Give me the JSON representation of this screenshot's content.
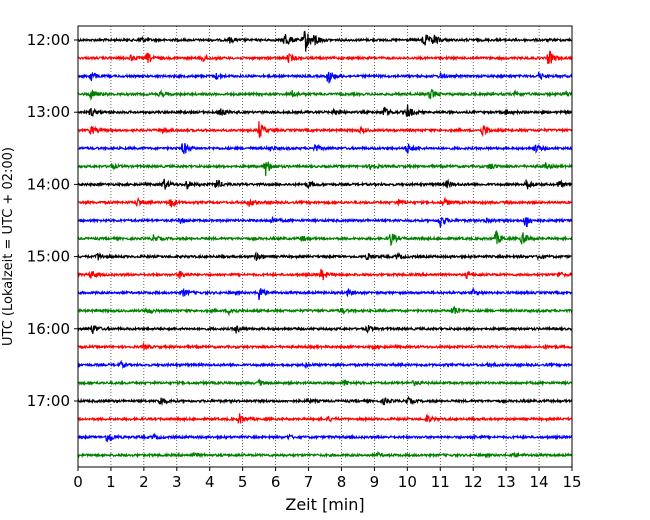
{
  "chart_data": {
    "type": "line",
    "title": "",
    "xlabel": "Zeit  [min]",
    "ylabel": "UTC (Lokalzeit = UTC + 02:00)",
    "xlim": [
      0,
      15
    ],
    "x_ticks": [
      0,
      1,
      2,
      3,
      4,
      5,
      6,
      7,
      8,
      9,
      10,
      11,
      12,
      13,
      14,
      15
    ],
    "x_tick_labels": [
      "0",
      "1",
      "2",
      "3",
      "4",
      "5",
      "6",
      "7",
      "8",
      "9",
      "10",
      "11",
      "12",
      "13",
      "14",
      "15"
    ],
    "y_ticks": [
      "12:00",
      "13:00",
      "14:00",
      "15:00",
      "16:00",
      "17:00"
    ],
    "row_interval_min": 15,
    "row_start": "12:00",
    "row_count": 24,
    "grid": "vertical-dotted",
    "color_cycle": [
      "#000000",
      "#ff0000",
      "#0000ff",
      "#008000"
    ],
    "rows": [
      {
        "label": "12:00",
        "events": [
          {
            "t": 6.3,
            "a": 1.0
          },
          {
            "t": 6.9,
            "a": 1.4
          },
          {
            "t": 7.2,
            "a": 0.6
          },
          {
            "t": 10.5,
            "a": 0.9
          },
          {
            "t": 10.8,
            "a": 0.6
          },
          {
            "t": 1.9,
            "a": 0.35
          },
          {
            "t": 4.6,
            "a": 0.3
          }
        ]
      },
      {
        "label": "12:15",
        "events": [
          {
            "t": 2.1,
            "a": 0.6
          },
          {
            "t": 3.8,
            "a": 0.4
          },
          {
            "t": 6.4,
            "a": 0.5
          },
          {
            "t": 14.3,
            "a": 0.9
          },
          {
            "t": 1.6,
            "a": 0.3
          }
        ]
      },
      {
        "label": "12:30",
        "events": [
          {
            "t": 0.4,
            "a": 0.6
          },
          {
            "t": 7.6,
            "a": 0.9
          },
          {
            "t": 14.0,
            "a": 0.4
          },
          {
            "t": 4.2,
            "a": 0.3
          },
          {
            "t": 11.0,
            "a": 0.3
          }
        ]
      },
      {
        "label": "12:45",
        "events": [
          {
            "t": 0.4,
            "a": 0.5
          },
          {
            "t": 2.5,
            "a": 0.3
          },
          {
            "t": 6.5,
            "a": 0.4
          },
          {
            "t": 10.7,
            "a": 0.7
          },
          {
            "t": 13.3,
            "a": 0.4
          },
          {
            "t": 14.8,
            "a": 0.4
          }
        ]
      },
      {
        "label": "13:00",
        "events": [
          {
            "t": 0.4,
            "a": 0.5
          },
          {
            "t": 4.3,
            "a": 0.6
          },
          {
            "t": 9.3,
            "a": 0.6
          },
          {
            "t": 10.0,
            "a": 0.8
          },
          {
            "t": 7.8,
            "a": 0.35
          },
          {
            "t": 13.0,
            "a": 0.3
          }
        ]
      },
      {
        "label": "13:15",
        "events": [
          {
            "t": 0.4,
            "a": 0.5
          },
          {
            "t": 5.5,
            "a": 1.0
          },
          {
            "t": 12.3,
            "a": 0.7
          },
          {
            "t": 8.6,
            "a": 0.3
          },
          {
            "t": 2.6,
            "a": 0.3
          }
        ]
      },
      {
        "label": "13:30",
        "events": [
          {
            "t": 3.2,
            "a": 0.8
          },
          {
            "t": 7.2,
            "a": 0.4
          },
          {
            "t": 10.0,
            "a": 0.6
          },
          {
            "t": 13.9,
            "a": 0.4
          },
          {
            "t": 5.8,
            "a": 0.3
          }
        ]
      },
      {
        "label": "13:45",
        "events": [
          {
            "t": 1.0,
            "a": 0.3
          },
          {
            "t": 5.7,
            "a": 1.0
          },
          {
            "t": 8.9,
            "a": 0.35
          },
          {
            "t": 12.5,
            "a": 0.4
          },
          {
            "t": 14.2,
            "a": 0.3
          }
        ]
      },
      {
        "label": "14:00",
        "events": [
          {
            "t": 2.6,
            "a": 0.7
          },
          {
            "t": 3.3,
            "a": 0.5
          },
          {
            "t": 4.2,
            "a": 0.6
          },
          {
            "t": 7.0,
            "a": 0.4
          },
          {
            "t": 11.2,
            "a": 0.4
          },
          {
            "t": 13.6,
            "a": 0.7
          },
          {
            "t": 14.6,
            "a": 0.4
          }
        ]
      },
      {
        "label": "14:15",
        "events": [
          {
            "t": 1.8,
            "a": 0.5
          },
          {
            "t": 2.8,
            "a": 0.6
          },
          {
            "t": 5.2,
            "a": 0.4
          },
          {
            "t": 9.7,
            "a": 0.35
          },
          {
            "t": 11.1,
            "a": 0.45
          }
        ]
      },
      {
        "label": "14:30",
        "events": [
          {
            "t": 3.1,
            "a": 0.3
          },
          {
            "t": 11.0,
            "a": 0.8
          },
          {
            "t": 13.6,
            "a": 0.9
          },
          {
            "t": 5.9,
            "a": 0.3
          },
          {
            "t": 12.4,
            "a": 0.3
          }
        ]
      },
      {
        "label": "14:45",
        "events": [
          {
            "t": 2.3,
            "a": 0.4
          },
          {
            "t": 9.5,
            "a": 0.8
          },
          {
            "t": 12.7,
            "a": 0.8
          },
          {
            "t": 13.5,
            "a": 0.8
          },
          {
            "t": 6.8,
            "a": 0.3
          }
        ]
      },
      {
        "label": "15:00",
        "events": [
          {
            "t": 0.6,
            "a": 0.4
          },
          {
            "t": 5.4,
            "a": 0.4
          },
          {
            "t": 8.8,
            "a": 0.4
          },
          {
            "t": 9.7,
            "a": 0.3
          },
          {
            "t": 14.0,
            "a": 0.3
          }
        ]
      },
      {
        "label": "15:15",
        "events": [
          {
            "t": 0.4,
            "a": 0.5
          },
          {
            "t": 3.1,
            "a": 0.4
          },
          {
            "t": 7.4,
            "a": 0.7
          },
          {
            "t": 11.8,
            "a": 0.3
          },
          {
            "t": 14.6,
            "a": 0.3
          }
        ]
      },
      {
        "label": "15:30",
        "events": [
          {
            "t": 3.2,
            "a": 0.4
          },
          {
            "t": 5.5,
            "a": 0.8
          },
          {
            "t": 8.2,
            "a": 0.3
          },
          {
            "t": 12.0,
            "a": 0.3
          }
        ]
      },
      {
        "label": "15:45",
        "events": [
          {
            "t": 2.1,
            "a": 0.3
          },
          {
            "t": 4.6,
            "a": 0.4
          },
          {
            "t": 11.4,
            "a": 0.6
          },
          {
            "t": 8.0,
            "a": 0.25
          }
        ]
      },
      {
        "label": "16:00",
        "events": [
          {
            "t": 0.45,
            "a": 0.5
          },
          {
            "t": 4.8,
            "a": 0.4
          },
          {
            "t": 8.8,
            "a": 0.35
          }
        ]
      },
      {
        "label": "16:15",
        "events": [
          {
            "t": 2.0,
            "a": 0.25
          },
          {
            "t": 9.0,
            "a": 0.2
          },
          {
            "t": 14.2,
            "a": 0.2
          }
        ]
      },
      {
        "label": "16:30",
        "events": [
          {
            "t": 1.3,
            "a": 0.3
          },
          {
            "t": 6.9,
            "a": 0.2
          },
          {
            "t": 12.5,
            "a": 0.25
          }
        ]
      },
      {
        "label": "16:45",
        "events": [
          {
            "t": 5.5,
            "a": 0.3
          },
          {
            "t": 8.1,
            "a": 0.3
          },
          {
            "t": 10.2,
            "a": 0.25
          }
        ]
      },
      {
        "label": "17:00",
        "events": [
          {
            "t": 2.5,
            "a": 0.5
          },
          {
            "t": 9.3,
            "a": 0.35
          },
          {
            "t": 10.0,
            "a": 0.4
          },
          {
            "t": 7.0,
            "a": 0.2
          }
        ]
      },
      {
        "label": "17:15",
        "events": [
          {
            "t": 4.9,
            "a": 0.6
          },
          {
            "t": 10.6,
            "a": 0.4
          },
          {
            "t": 7.6,
            "a": 0.25
          }
        ]
      },
      {
        "label": "17:30",
        "events": [
          {
            "t": 0.9,
            "a": 0.7
          },
          {
            "t": 2.3,
            "a": 0.25
          },
          {
            "t": 6.4,
            "a": 0.2
          },
          {
            "t": 12.0,
            "a": 0.2
          }
        ]
      },
      {
        "label": "17:45",
        "events": [
          {
            "t": 3.5,
            "a": 0.2
          },
          {
            "t": 9.1,
            "a": 0.2
          },
          {
            "t": 13.2,
            "a": 0.2
          }
        ]
      }
    ]
  }
}
